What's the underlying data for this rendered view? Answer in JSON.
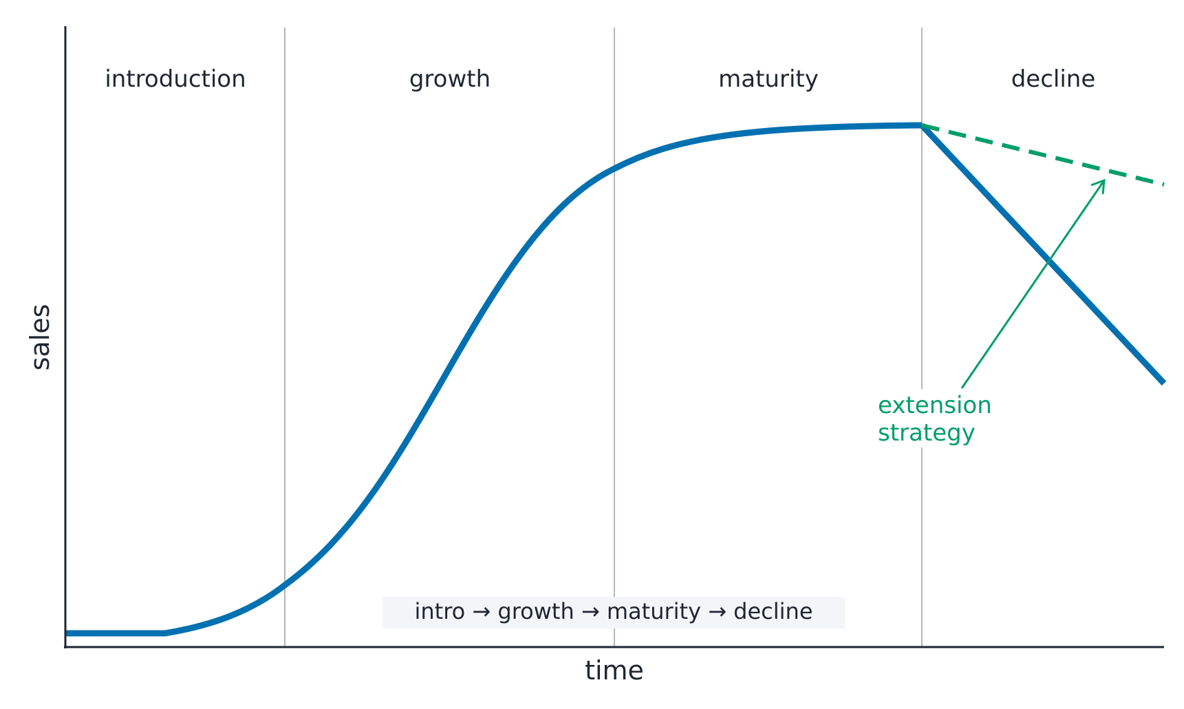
{
  "axes": {
    "x_label": "time",
    "y_label": "sales"
  },
  "stages": [
    {
      "label": "introduction"
    },
    {
      "label": "growth"
    },
    {
      "label": "maturity"
    },
    {
      "label": "decline"
    }
  ],
  "annotation": {
    "line1": "extension",
    "line2": "strategy"
  },
  "summary": "intro → growth → maturity → decline",
  "colors": {
    "curve": "#0070b0",
    "extension": "#009e6a",
    "divider": "#b3b6bd",
    "axis": "#1f2633",
    "summary_bg": "#f3f5f8"
  }
}
